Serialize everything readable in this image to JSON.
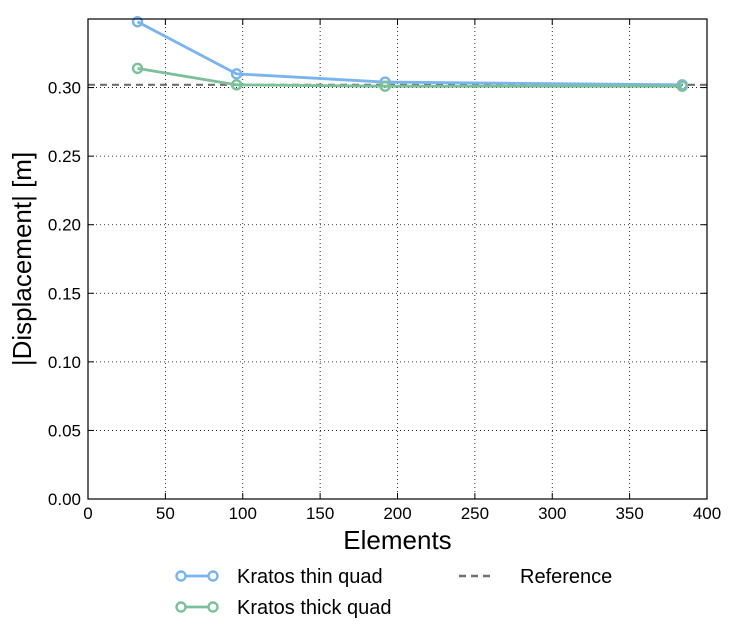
{
  "chart_data": {
    "type": "line",
    "xlabel": "Elements",
    "ylabel": "|Displacement| [m]",
    "xlim": [
      0,
      400
    ],
    "ylim": [
      0,
      0.35
    ],
    "xticks": [
      0,
      50,
      100,
      150,
      200,
      250,
      300,
      350,
      400
    ],
    "yticks": [
      0.0,
      0.05,
      0.1,
      0.15,
      0.2,
      0.25,
      0.3
    ],
    "xtick_labels": [
      "0",
      "50",
      "100",
      "150",
      "200",
      "250",
      "300",
      "350",
      "400"
    ],
    "ytick_labels": [
      "0.00",
      "0.05",
      "0.10",
      "0.15",
      "0.20",
      "0.25",
      "0.30"
    ],
    "grid": true,
    "legend_position": "bottom",
    "series": [
      {
        "name": "Kratos thin quad",
        "x": [
          32,
          96,
          192,
          384
        ],
        "y": [
          0.348,
          0.31,
          0.304,
          0.302
        ],
        "color": "#7ab4f0",
        "marker": "circle-open",
        "style": "solid"
      },
      {
        "name": "Kratos thick quad",
        "x": [
          32,
          96,
          192,
          384
        ],
        "y": [
          0.314,
          0.302,
          0.301,
          0.301
        ],
        "color": "#7cc09a",
        "marker": "circle-open",
        "style": "solid"
      }
    ],
    "reference": {
      "name": "Reference",
      "y": 0.302,
      "color": "#707070",
      "style": "dashed"
    }
  }
}
